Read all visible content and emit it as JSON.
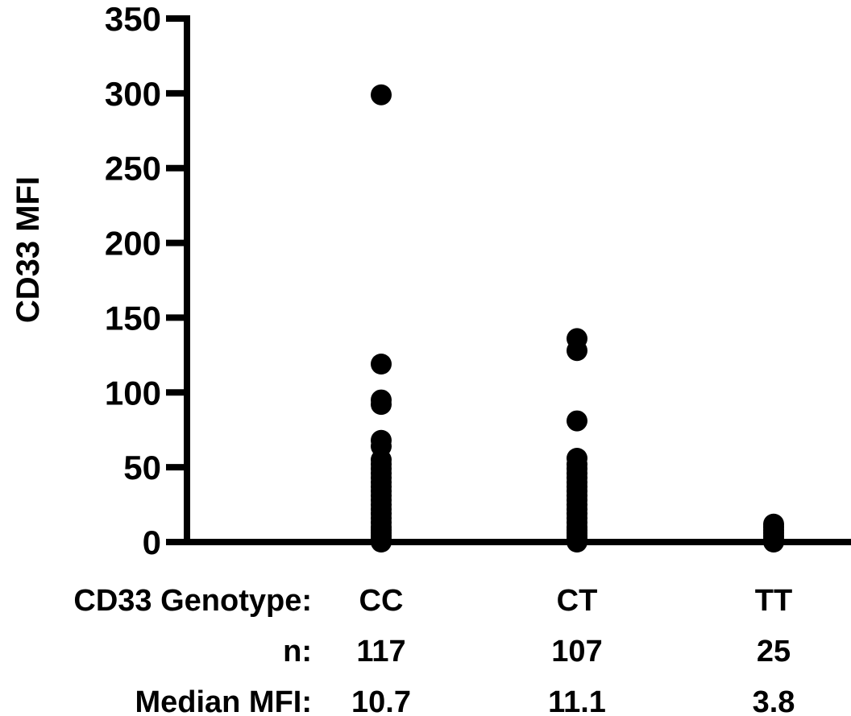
{
  "chart_data": {
    "type": "scatter",
    "ylabel": "CD33 MFI",
    "ylim": [
      0,
      350
    ],
    "yticks": [
      0,
      50,
      100,
      150,
      200,
      250,
      300,
      350
    ],
    "ytick_labels": [
      "0",
      "50",
      "100",
      "150",
      "200",
      "250",
      "300",
      "350"
    ],
    "categories": [
      "CC",
      "CT",
      "TT"
    ],
    "row_labels": {
      "genotype": "CD33 Genotype:",
      "n": "n:",
      "median": "Median MFI:"
    },
    "n": [
      "117",
      "107",
      "25"
    ],
    "median": [
      "10.7",
      "11.1",
      "3.8"
    ],
    "marker_color": "#000000",
    "series": [
      {
        "category": "CC",
        "values": [
          299,
          119,
          95,
          92,
          68,
          64,
          55,
          52,
          49,
          46,
          43,
          40,
          37,
          34,
          31,
          28,
          25,
          22,
          19,
          16,
          13,
          10,
          8,
          6,
          4,
          2,
          0
        ]
      },
      {
        "category": "CT",
        "values": [
          136,
          128,
          81,
          56,
          52,
          49,
          46,
          43,
          40,
          37,
          34,
          31,
          28,
          25,
          22,
          19,
          16,
          13,
          10,
          8,
          6,
          4,
          2,
          0
        ]
      },
      {
        "category": "TT",
        "values": [
          12,
          10,
          8,
          6,
          4,
          2,
          0
        ]
      }
    ]
  }
}
